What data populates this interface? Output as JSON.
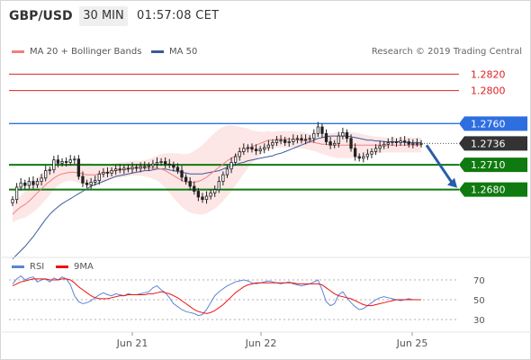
{
  "header": {
    "symbol": "GBP/USD",
    "timeframe": "30 MIN",
    "clock": "01:57:08 CET"
  },
  "copyright": "Research © 2019 Trading Central",
  "colors": {
    "ma20": "#f08080",
    "ma50": "#3a5a98",
    "band_fill": "#fde6e6",
    "up": "#2a2a2a",
    "resistance_red": "#dd2222",
    "resistance_blue": "#2e6fe0",
    "support_green": "#0f7a0f",
    "current": "#333333",
    "rsi": "#5b84d6",
    "rsi_ma": "#ee1111",
    "arrow": "#2a5caa"
  },
  "legend_main": [
    {
      "label": "MA 20 + Bollinger Bands",
      "color": "#f08080"
    },
    {
      "label": "MA 50",
      "color": "#3a5a98"
    }
  ],
  "legend_rsi": [
    {
      "label": "RSI",
      "color": "#5b84d6"
    },
    {
      "label": "9MA",
      "color": "#ee1111"
    }
  ],
  "chart_data": [
    {
      "type": "candlestick",
      "title": "GBP/USD 30 MIN",
      "x_ticks": [
        "Jun 21",
        "Jun 22",
        "Jun 25"
      ],
      "ylim": [
        1.26,
        1.284
      ],
      "current_price": "1.2736",
      "levels": [
        {
          "label": "1.2820",
          "value": 1.282,
          "kind": "resistance",
          "color": "#dd2222"
        },
        {
          "label": "1.2800",
          "value": 1.28,
          "kind": "resistance",
          "color": "#dd2222"
        },
        {
          "label": "1.2760",
          "value": 1.276,
          "kind": "pivot",
          "color": "#2e6fe0"
        },
        {
          "label": "1.2736",
          "value": 1.2736,
          "kind": "current",
          "color": "#333333"
        },
        {
          "label": "1.2710",
          "value": 1.271,
          "kind": "support",
          "color": "#0f7a0f"
        },
        {
          "label": "1.2680",
          "value": 1.268,
          "kind": "support",
          "color": "#0f7a0f"
        }
      ],
      "closes": [
        1.2668,
        1.2683,
        1.2688,
        1.2685,
        1.269,
        1.2686,
        1.269,
        1.2694,
        1.2703,
        1.2704,
        1.2716,
        1.2712,
        1.2714,
        1.2713,
        1.2716,
        1.2717,
        1.2696,
        1.2688,
        1.2686,
        1.2689,
        1.2691,
        1.2699,
        1.2701,
        1.27,
        1.2703,
        1.2705,
        1.2704,
        1.2706,
        1.2705,
        1.2707,
        1.2706,
        1.2708,
        1.2708,
        1.2709,
        1.2711,
        1.2713,
        1.2714,
        1.2711,
        1.271,
        1.2707,
        1.2703,
        1.2695,
        1.269,
        1.2684,
        1.2678,
        1.2671,
        1.2668,
        1.2672,
        1.2676,
        1.268,
        1.269,
        1.2698,
        1.2705,
        1.2713,
        1.272,
        1.2726,
        1.273,
        1.2731,
        1.2729,
        1.2727,
        1.2729,
        1.2731,
        1.2734,
        1.2737,
        1.274,
        1.274,
        1.2737,
        1.2738,
        1.2741,
        1.2742,
        1.274,
        1.2741,
        1.2742,
        1.2748,
        1.2756,
        1.2748,
        1.2738,
        1.2734,
        1.2736,
        1.2745,
        1.2749,
        1.2742,
        1.273,
        1.272,
        1.2718,
        1.272,
        1.2723,
        1.2726,
        1.273,
        1.2733,
        1.2735,
        1.2737,
        1.2738,
        1.2737,
        1.2739,
        1.2738,
        1.2735,
        1.2736,
        1.2736,
        1.2736
      ],
      "ma50": [
        1.2596,
        1.2601,
        1.2606,
        1.2611,
        1.2617,
        1.2623,
        1.263,
        1.2637,
        1.2644,
        1.265,
        1.2655,
        1.2659,
        1.2663,
        1.2666,
        1.2669,
        1.2672,
        1.2675,
        1.2678,
        1.2681,
        1.2684,
        1.2686,
        1.2688,
        1.269,
        1.2692,
        1.2694,
        1.2696,
        1.2697,
        1.2698,
        1.2699,
        1.27,
        1.2701,
        1.2702,
        1.2703,
        1.2703,
        1.2704,
        1.2705,
        1.2705,
        1.2705,
        1.2704,
        1.2703,
        1.2702,
        1.2701,
        1.27,
        1.2699,
        1.2699,
        1.2699,
        1.2699,
        1.27,
        1.2701,
        1.2702,
        1.2703,
        1.2705,
        1.2707,
        1.2708,
        1.271,
        1.2712,
        1.2713,
        1.2715,
        1.2716,
        1.2717,
        1.2718,
        1.2719,
        1.272,
        1.2721,
        1.2723,
        1.2724,
        1.2726,
        1.2728,
        1.273,
        1.2732,
        1.2734,
        1.2736,
        1.2738,
        1.274,
        1.2742,
        1.2743,
        1.2744,
        1.2745,
        1.2745,
        1.2745,
        1.2745,
        1.2745,
        1.2744,
        1.2743,
        1.2742,
        1.2741,
        1.274,
        1.274,
        1.2739,
        1.2739,
        1.2738,
        1.2738,
        1.2738,
        1.2738,
        1.2738,
        1.2737,
        1.2737,
        1.2737,
        1.2737,
        1.2737
      ],
      "ma20": [
        1.265,
        1.2655,
        1.2659,
        1.2662,
        1.2666,
        1.2671,
        1.2676,
        1.2681,
        1.2686,
        1.269,
        1.2694,
        1.2697,
        1.2699,
        1.27,
        1.2701,
        1.2701,
        1.27,
        1.2699,
        1.2698,
        1.2698,
        1.2698,
        1.2699,
        1.27,
        1.2701,
        1.2702,
        1.2703,
        1.2704,
        1.2704,
        1.2705,
        1.2706,
        1.2706,
        1.2706,
        1.2706,
        1.2706,
        1.2706,
        1.2706,
        1.2705,
        1.2703,
        1.27,
        1.2697,
        1.2694,
        1.2691,
        1.2689,
        1.2688,
        1.2689,
        1.269,
        1.2692,
        1.2695,
        1.2699,
        1.2703,
        1.2707,
        1.2711,
        1.2715,
        1.2718,
        1.2721,
        1.2724,
        1.2727,
        1.273,
        1.2732,
        1.2734,
        1.2736,
        1.2738,
        1.274,
        1.274,
        1.2741,
        1.2741,
        1.2741,
        1.2741,
        1.2741,
        1.274,
        1.274,
        1.2739,
        1.2738,
        1.2737,
        1.2736,
        1.2735,
        1.2735,
        1.2734,
        1.2734,
        1.2734,
        1.2734,
        1.2734,
        1.2734,
        1.2734,
        1.2734,
        1.2734,
        1.2734,
        1.2734,
        1.2734,
        1.2734,
        1.2734,
        1.2734,
        1.2734,
        1.2734,
        1.2734,
        1.2734,
        1.2734,
        1.2734,
        1.2734,
        1.2734
      ],
      "band_width": [
        0.001,
        0.0012,
        0.0014,
        0.0016,
        0.0017,
        0.0018,
        0.0019,
        0.0019,
        0.0018,
        0.0016,
        0.0014,
        0.0012,
        0.0011,
        0.001,
        0.001,
        0.0011,
        0.0012,
        0.0013,
        0.0014,
        0.0014,
        0.0013,
        0.0012,
        0.0011,
        0.001,
        0.0009,
        0.0009,
        0.0009,
        0.0009,
        0.0009,
        0.0009,
        0.0009,
        0.0009,
        0.001,
        0.0011,
        0.0013,
        0.0015,
        0.0018,
        0.0021,
        0.0024,
        0.0027,
        0.003,
        0.0032,
        0.0034,
        0.0036,
        0.0038,
        0.004,
        0.0042,
        0.0044,
        0.0045,
        0.0046,
        0.0046,
        0.0045,
        0.0043,
        0.004,
        0.0036,
        0.0032,
        0.0028,
        0.0024,
        0.002,
        0.0017,
        0.0014,
        0.0012,
        0.0011,
        0.001,
        0.001,
        0.001,
        0.001,
        0.001,
        0.001,
        0.001,
        0.001,
        0.001,
        0.001,
        0.001,
        0.0011,
        0.0012,
        0.0013,
        0.0014,
        0.0015,
        0.0016,
        0.0016,
        0.0016,
        0.0016,
        0.0015,
        0.0014,
        0.0013,
        0.0012,
        0.0011,
        0.001,
        0.001,
        0.0009,
        0.0009,
        0.0009,
        0.0009,
        0.0009,
        0.0009,
        0.0009,
        0.0009,
        0.0009,
        0.0009
      ],
      "forecast_arrow": "down toward 1.2680"
    },
    {
      "type": "line",
      "title": "RSI",
      "x_ticks": [
        "Jun 21",
        "Jun 22",
        "Jun 25"
      ],
      "ylim": [
        20,
        80
      ],
      "y_ticks": [
        70,
        50,
        30
      ],
      "series": [
        {
          "name": "RSI",
          "values": [
            66,
            71,
            74,
            70,
            72,
            73,
            68,
            70,
            71,
            68,
            72,
            70,
            73,
            71,
            65,
            54,
            48,
            46,
            47,
            49,
            52,
            55,
            57,
            55,
            54,
            56,
            55,
            54,
            56,
            55,
            55,
            56,
            57,
            58,
            62,
            64,
            60,
            57,
            52,
            46,
            43,
            40,
            38,
            37,
            36,
            34,
            35,
            40,
            47,
            54,
            58,
            61,
            64,
            66,
            68,
            69,
            70,
            69,
            67,
            66,
            67,
            68,
            69,
            68,
            67,
            66,
            67,
            68,
            66,
            65,
            64,
            65,
            66,
            68,
            70,
            60,
            48,
            44,
            46,
            55,
            58,
            52,
            47,
            43,
            40,
            41,
            44,
            47,
            50,
            52,
            53,
            52,
            51,
            50,
            49,
            50,
            51,
            50,
            50,
            50
          ]
        },
        {
          "name": "9MA",
          "values": [
            64,
            66,
            68,
            69,
            70,
            71,
            71,
            71,
            71,
            70,
            70,
            70,
            71,
            71,
            70,
            67,
            63,
            60,
            57,
            54,
            52,
            51,
            51,
            51,
            52,
            53,
            54,
            54,
            55,
            55,
            55,
            55,
            55,
            56,
            56,
            57,
            58,
            57,
            56,
            54,
            52,
            49,
            46,
            43,
            40,
            38,
            37,
            36,
            37,
            39,
            42,
            45,
            49,
            53,
            57,
            60,
            63,
            65,
            66,
            67,
            67,
            67,
            67,
            67,
            67,
            67,
            67,
            67,
            67,
            66,
            66,
            66,
            66,
            66,
            66,
            65,
            62,
            59,
            56,
            54,
            53,
            52,
            51,
            49,
            47,
            45,
            44,
            44,
            45,
            46,
            47,
            48,
            49,
            50,
            50,
            50,
            50,
            50,
            50,
            50
          ]
        }
      ]
    }
  ]
}
